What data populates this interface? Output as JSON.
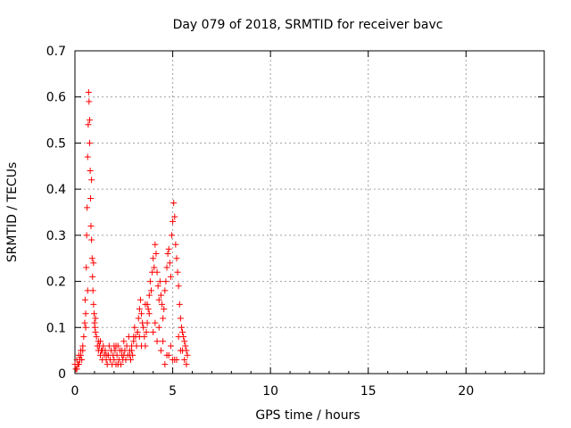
{
  "chart_data": {
    "type": "scatter",
    "title": "Day 079 of 2018, SRMTID for receiver bavc",
    "xlabel": "GPS time / hours",
    "ylabel": "SRMTID / TECUs",
    "xlim": [
      0,
      24
    ],
    "ylim": [
      0,
      0.7
    ],
    "xticks": [
      0,
      5,
      10,
      15,
      20
    ],
    "yticks": [
      0,
      0.1,
      0.2,
      0.3,
      0.4,
      0.5,
      0.6,
      0.7
    ],
    "xtick_labels": [
      "0",
      "5",
      "10",
      "15",
      "20"
    ],
    "ytick_labels": [
      "0",
      "0.1",
      "0.2",
      "0.3",
      "0.4",
      "0.5",
      "0.6",
      "0.7"
    ],
    "grid": true,
    "marker": "+",
    "marker_color": "#ff0000",
    "series": [
      {
        "name": "SRMTID",
        "x": [
          0.0,
          0.05,
          0.1,
          0.15,
          0.2,
          0.25,
          0.3,
          0.35,
          0.4,
          0.45,
          0.5,
          0.52,
          0.55,
          0.58,
          0.6,
          0.62,
          0.65,
          0.68,
          0.7,
          0.72,
          0.75,
          0.78,
          0.8,
          0.82,
          0.85,
          0.88,
          0.9,
          0.92,
          0.95,
          0.98,
          1.0,
          1.02,
          1.05,
          1.1,
          1.15,
          1.2,
          1.25,
          1.3,
          1.35,
          1.4,
          1.45,
          1.5,
          1.55,
          1.6,
          1.65,
          1.7,
          1.75,
          1.8,
          1.85,
          1.9,
          1.95,
          2.0,
          2.05,
          2.1,
          2.15,
          2.2,
          2.25,
          2.3,
          2.35,
          2.4,
          2.45,
          2.5,
          2.55,
          2.6,
          2.65,
          2.7,
          2.75,
          2.8,
          2.85,
          2.9,
          2.95,
          3.0,
          3.05,
          3.1,
          3.15,
          3.2,
          3.25,
          3.3,
          3.35,
          3.4,
          3.45,
          3.5,
          3.55,
          3.6,
          3.65,
          3.7,
          3.75,
          3.8,
          3.85,
          3.9,
          3.95,
          4.0,
          4.05,
          4.1,
          4.15,
          4.2,
          4.25,
          4.3,
          4.35,
          4.4,
          4.45,
          4.5,
          4.55,
          4.6,
          4.65,
          4.7,
          4.75,
          4.8,
          4.85,
          4.9,
          4.95,
          5.0,
          5.05,
          5.1,
          5.15,
          5.2,
          5.25,
          5.3,
          5.35,
          5.4,
          5.45,
          5.5,
          5.55,
          5.6,
          5.65,
          5.7,
          5.75,
          0.1,
          0.2,
          0.3,
          0.4,
          0.55,
          0.65,
          0.75,
          0.85,
          0.95,
          1.05,
          1.2,
          1.4,
          1.6,
          1.8,
          2.0,
          2.2,
          2.4,
          2.6,
          2.8,
          3.0,
          3.2,
          3.4,
          3.6,
          3.8,
          4.0,
          4.2,
          4.4,
          4.6,
          4.8,
          5.0,
          5.2,
          5.4,
          5.6,
          1.3,
          1.7,
          2.1,
          2.5,
          2.9,
          3.3,
          3.7,
          4.1,
          4.3,
          4.5,
          4.7,
          4.9,
          5.1,
          5.3,
          5.5,
          5.7
        ],
        "y": [
          0.02,
          0.01,
          0.03,
          0.02,
          0.04,
          0.03,
          0.05,
          0.03,
          0.06,
          0.08,
          0.11,
          0.16,
          0.13,
          0.23,
          0.3,
          0.36,
          0.47,
          0.54,
          0.61,
          0.59,
          0.5,
          0.44,
          0.38,
          0.32,
          0.29,
          0.25,
          0.21,
          0.18,
          0.15,
          0.13,
          0.11,
          0.1,
          0.09,
          0.08,
          0.06,
          0.05,
          0.06,
          0.04,
          0.05,
          0.03,
          0.06,
          0.04,
          0.05,
          0.03,
          0.02,
          0.04,
          0.06,
          0.03,
          0.05,
          0.02,
          0.04,
          0.03,
          0.05,
          0.02,
          0.04,
          0.06,
          0.03,
          0.05,
          0.02,
          0.04,
          0.03,
          0.07,
          0.05,
          0.03,
          0.06,
          0.04,
          0.08,
          0.05,
          0.03,
          0.06,
          0.04,
          0.07,
          0.1,
          0.08,
          0.06,
          0.09,
          0.12,
          0.14,
          0.16,
          0.13,
          0.11,
          0.1,
          0.08,
          0.06,
          0.09,
          0.11,
          0.14,
          0.17,
          0.2,
          0.18,
          0.22,
          0.25,
          0.23,
          0.28,
          0.26,
          0.22,
          0.19,
          0.16,
          0.2,
          0.17,
          0.15,
          0.12,
          0.14,
          0.18,
          0.2,
          0.23,
          0.26,
          0.27,
          0.24,
          0.21,
          0.3,
          0.33,
          0.37,
          0.34,
          0.28,
          0.25,
          0.22,
          0.19,
          0.15,
          0.12,
          0.1,
          0.09,
          0.08,
          0.07,
          0.06,
          0.05,
          0.04,
          0.01,
          0.02,
          0.04,
          0.05,
          0.1,
          0.18,
          0.55,
          0.42,
          0.24,
          0.12,
          0.07,
          0.05,
          0.04,
          0.03,
          0.06,
          0.02,
          0.05,
          0.03,
          0.04,
          0.08,
          0.09,
          0.06,
          0.15,
          0.13,
          0.09,
          0.07,
          0.05,
          0.02,
          0.04,
          0.03,
          0.03,
          0.05,
          0.03,
          0.07,
          0.04,
          0.06,
          0.04,
          0.05,
          0.08,
          0.15,
          0.11,
          0.1,
          0.07,
          0.04,
          0.06,
          0.03,
          0.08,
          0.05,
          0.02
        ]
      }
    ]
  }
}
